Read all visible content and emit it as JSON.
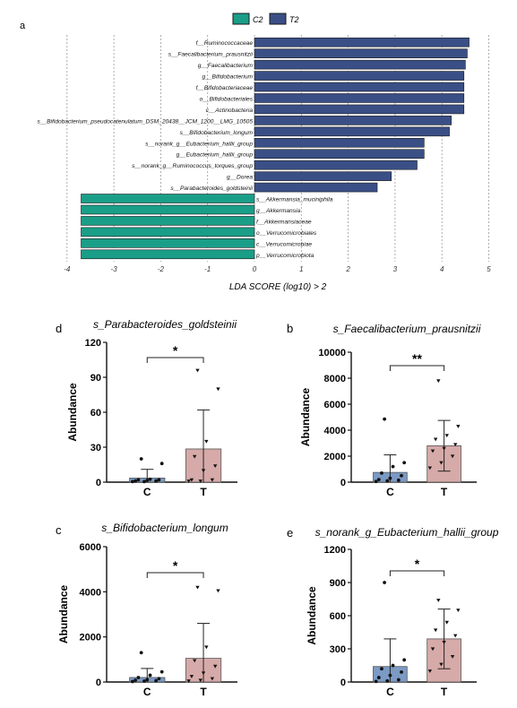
{
  "colors": {
    "C2": "#1a9e88",
    "T2": "#3a4f86",
    "C": "#7b9ac4",
    "T": "#d6aaa8",
    "stroke": "#1a1a1a"
  },
  "chart_data": [
    {
      "panel": "a",
      "type": "bar",
      "orientation": "horizontal",
      "legend": [
        "C2",
        "T2"
      ],
      "legend_placement": "top",
      "xlabel": "LDA SCORE (log10) > 2",
      "xlim": [
        -4,
        5
      ],
      "xticks": [
        "-4",
        "-3",
        "-2",
        "-1",
        "0",
        "1",
        "2",
        "3",
        "4",
        "5"
      ],
      "grid": "vertical dashed",
      "categories": [
        "f__Ruminococcaceae",
        "s__Faecalibacterium_prausnitzii",
        "g__Faecalibacterium",
        "g__Bifidobacterium",
        "f__Bifidobacteriaceae",
        "o__Bifidobacteriales",
        "c__Actinobacteria",
        "s__Bifidobacterium_pseudocatenulatum_DSM_20438__JCM_1200__LMG_10505",
        "s__Bifidobacterium_longum",
        "s__norank_g__Eubacterium_hallii_group",
        "g__Eubacterium_hallii_group",
        "s__norank_g__Ruminococcus_torques_group",
        "g__Dorea",
        "s__Parabacteroides_goldsteinii",
        "s__Akkermansia_muciniphila",
        "g__Akkermansia",
        "f__Akkermansiaceae",
        "o__Verrucomicrobiales",
        "c__Verrucomicrobiae",
        "p__Verrucomicrobiota"
      ],
      "values": [
        4.58,
        4.54,
        4.5,
        4.47,
        4.47,
        4.47,
        4.47,
        4.2,
        4.16,
        3.62,
        3.62,
        3.47,
        2.92,
        2.62,
        -3.7,
        -3.7,
        -3.7,
        -3.7,
        -3.7,
        -3.7
      ],
      "groups": [
        "T2",
        "T2",
        "T2",
        "T2",
        "T2",
        "T2",
        "T2",
        "T2",
        "T2",
        "T2",
        "T2",
        "T2",
        "T2",
        "T2",
        "C2",
        "C2",
        "C2",
        "C2",
        "C2",
        "C2"
      ]
    },
    {
      "panel": "d",
      "type": "bar",
      "title": "s_Parabacteroides_goldsteinii",
      "ylabel": "Abundance",
      "ylim": [
        0,
        120
      ],
      "yticks": [
        "0",
        "30",
        "60",
        "90",
        "120"
      ],
      "categories": [
        "C",
        "T"
      ],
      "values": [
        3.5,
        28.5
      ],
      "error_upper": [
        11,
        62
      ],
      "error_lower": [
        0,
        0
      ],
      "significance": "*",
      "points": [
        [
          0.5,
          0.5,
          1,
          1,
          1.5,
          2,
          2,
          2.5,
          16,
          20
        ],
        [
          1,
          1,
          2,
          2,
          10,
          14,
          22,
          35,
          80,
          96
        ]
      ]
    },
    {
      "panel": "b",
      "type": "bar",
      "title": "s_Faecalibacterium_prausnitzii",
      "ylabel": "Abundance",
      "ylim": [
        0,
        10000
      ],
      "yticks": [
        "0",
        "2000",
        "4000",
        "6000",
        "8000",
        "10000"
      ],
      "categories": [
        "C",
        "T"
      ],
      "values": [
        750,
        2800
      ],
      "error_upper": [
        2100,
        4750
      ],
      "error_lower": [
        0,
        850
      ],
      "significance": "**",
      "points": [
        [
          50,
          100,
          150,
          200,
          300,
          500,
          700,
          1200,
          1500,
          4850
        ],
        [
          1100,
          1500,
          2000,
          2400,
          2600,
          2900,
          3300,
          3600,
          4300,
          7800
        ]
      ]
    },
    {
      "panel": "c",
      "type": "bar",
      "title": "s_Bifidobacterium_longum",
      "ylabel": "Abundance",
      "ylim": [
        0,
        6000
      ],
      "yticks": [
        "0",
        "2000",
        "4000",
        "6000"
      ],
      "categories": [
        "C",
        "T"
      ],
      "values": [
        200,
        1050
      ],
      "error_upper": [
        600,
        2600
      ],
      "error_lower": [
        0,
        0
      ],
      "significance": "*",
      "points": [
        [
          20,
          40,
          60,
          80,
          100,
          150,
          200,
          300,
          450,
          1300
        ],
        [
          50,
          80,
          150,
          250,
          400,
          700,
          950,
          1550,
          4050,
          4200
        ]
      ]
    },
    {
      "panel": "e",
      "type": "bar",
      "title": "s_norank_g_Eubacterium_hallii_group",
      "ylabel": "Abundance",
      "ylim": [
        0,
        1200
      ],
      "yticks": [
        "0",
        "300",
        "600",
        "900",
        "1200"
      ],
      "categories": [
        "C",
        "T"
      ],
      "values": [
        140,
        390
      ],
      "error_upper": [
        390,
        660
      ],
      "error_lower": [
        0,
        120
      ],
      "significance": "*",
      "points": [
        [
          5,
          10,
          20,
          40,
          60,
          90,
          120,
          150,
          200,
          900
        ],
        [
          100,
          160,
          230,
          300,
          360,
          420,
          470,
          540,
          650,
          740
        ]
      ]
    }
  ],
  "panel_letters": {
    "a": "a",
    "d": "d",
    "b": "b",
    "c": "c",
    "e": "e"
  }
}
